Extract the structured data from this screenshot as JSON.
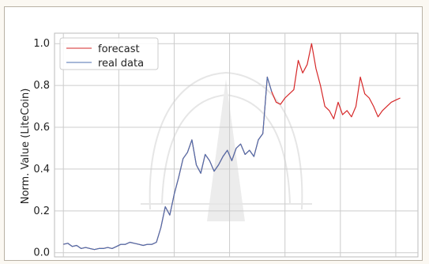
{
  "chart_data": {
    "type": "line",
    "title": "",
    "xlabel": "",
    "ylabel": "Norm. Value (LiteCoin)",
    "ylim": [
      -0.02,
      1.05
    ],
    "xlim": [
      -40,
      1600
    ],
    "yticks": [
      "0.0",
      "0.2",
      "0.4",
      "0.6",
      "0.8",
      "1.0"
    ],
    "grid": true,
    "legend": "top-left",
    "series": [
      {
        "name": "forecast",
        "color": "#d62728",
        "x": [
          0,
          20,
          40,
          60,
          80,
          100,
          120,
          140,
          160,
          180,
          200,
          220,
          240,
          260,
          280,
          300,
          320,
          340,
          360,
          380,
          400,
          420,
          440,
          460,
          480,
          500,
          520,
          540,
          560,
          580,
          600,
          620,
          640,
          660,
          680,
          700,
          720,
          740,
          760,
          780,
          800,
          820,
          840,
          860,
          880,
          900,
          920,
          940,
          960,
          980,
          1000,
          1020,
          1040,
          1060,
          1080,
          1100,
          1120,
          1140,
          1160,
          1180,
          1200,
          1220,
          1240,
          1260,
          1280,
          1300,
          1320,
          1340,
          1360,
          1380,
          1400,
          1420,
          1440,
          1460,
          1480,
          1500,
          1520
        ],
        "values": [
          0.04,
          0.045,
          0.03,
          0.035,
          0.02,
          0.025,
          0.02,
          0.015,
          0.02,
          0.02,
          0.025,
          0.02,
          0.03,
          0.04,
          0.04,
          0.05,
          0.045,
          0.04,
          0.035,
          0.04,
          0.04,
          0.05,
          0.12,
          0.22,
          0.18,
          0.28,
          0.36,
          0.45,
          0.48,
          0.54,
          0.42,
          0.38,
          0.47,
          0.44,
          0.39,
          0.42,
          0.46,
          0.49,
          0.44,
          0.5,
          0.52,
          0.47,
          0.49,
          0.46,
          0.54,
          0.57,
          0.84,
          0.77,
          0.72,
          0.71,
          0.74,
          0.76,
          0.78,
          0.92,
          0.86,
          0.9,
          1.0,
          0.88,
          0.8,
          0.7,
          0.68,
          0.64,
          0.72,
          0.66,
          0.68,
          0.65,
          0.7,
          0.84,
          0.76,
          0.74,
          0.7,
          0.65,
          0.68,
          0.7,
          0.72,
          0.73,
          0.74
        ]
      },
      {
        "name": "real data",
        "color": "#4c72b0",
        "x": [
          0,
          20,
          40,
          60,
          80,
          100,
          120,
          140,
          160,
          180,
          200,
          220,
          240,
          260,
          280,
          300,
          320,
          340,
          360,
          380,
          400,
          420,
          440,
          460,
          480,
          500,
          520,
          540,
          560,
          580,
          600,
          620,
          640,
          660,
          680,
          700,
          720,
          740,
          760,
          780,
          800,
          820,
          840,
          860,
          880,
          900,
          920,
          940
        ],
        "values": [
          0.04,
          0.045,
          0.03,
          0.035,
          0.02,
          0.025,
          0.02,
          0.015,
          0.02,
          0.02,
          0.025,
          0.02,
          0.03,
          0.04,
          0.04,
          0.05,
          0.045,
          0.04,
          0.035,
          0.04,
          0.04,
          0.05,
          0.12,
          0.22,
          0.18,
          0.28,
          0.36,
          0.45,
          0.48,
          0.54,
          0.42,
          0.38,
          0.47,
          0.44,
          0.39,
          0.42,
          0.46,
          0.49,
          0.44,
          0.5,
          0.52,
          0.47,
          0.49,
          0.46,
          0.54,
          0.57,
          0.84,
          0.77
        ]
      }
    ]
  }
}
